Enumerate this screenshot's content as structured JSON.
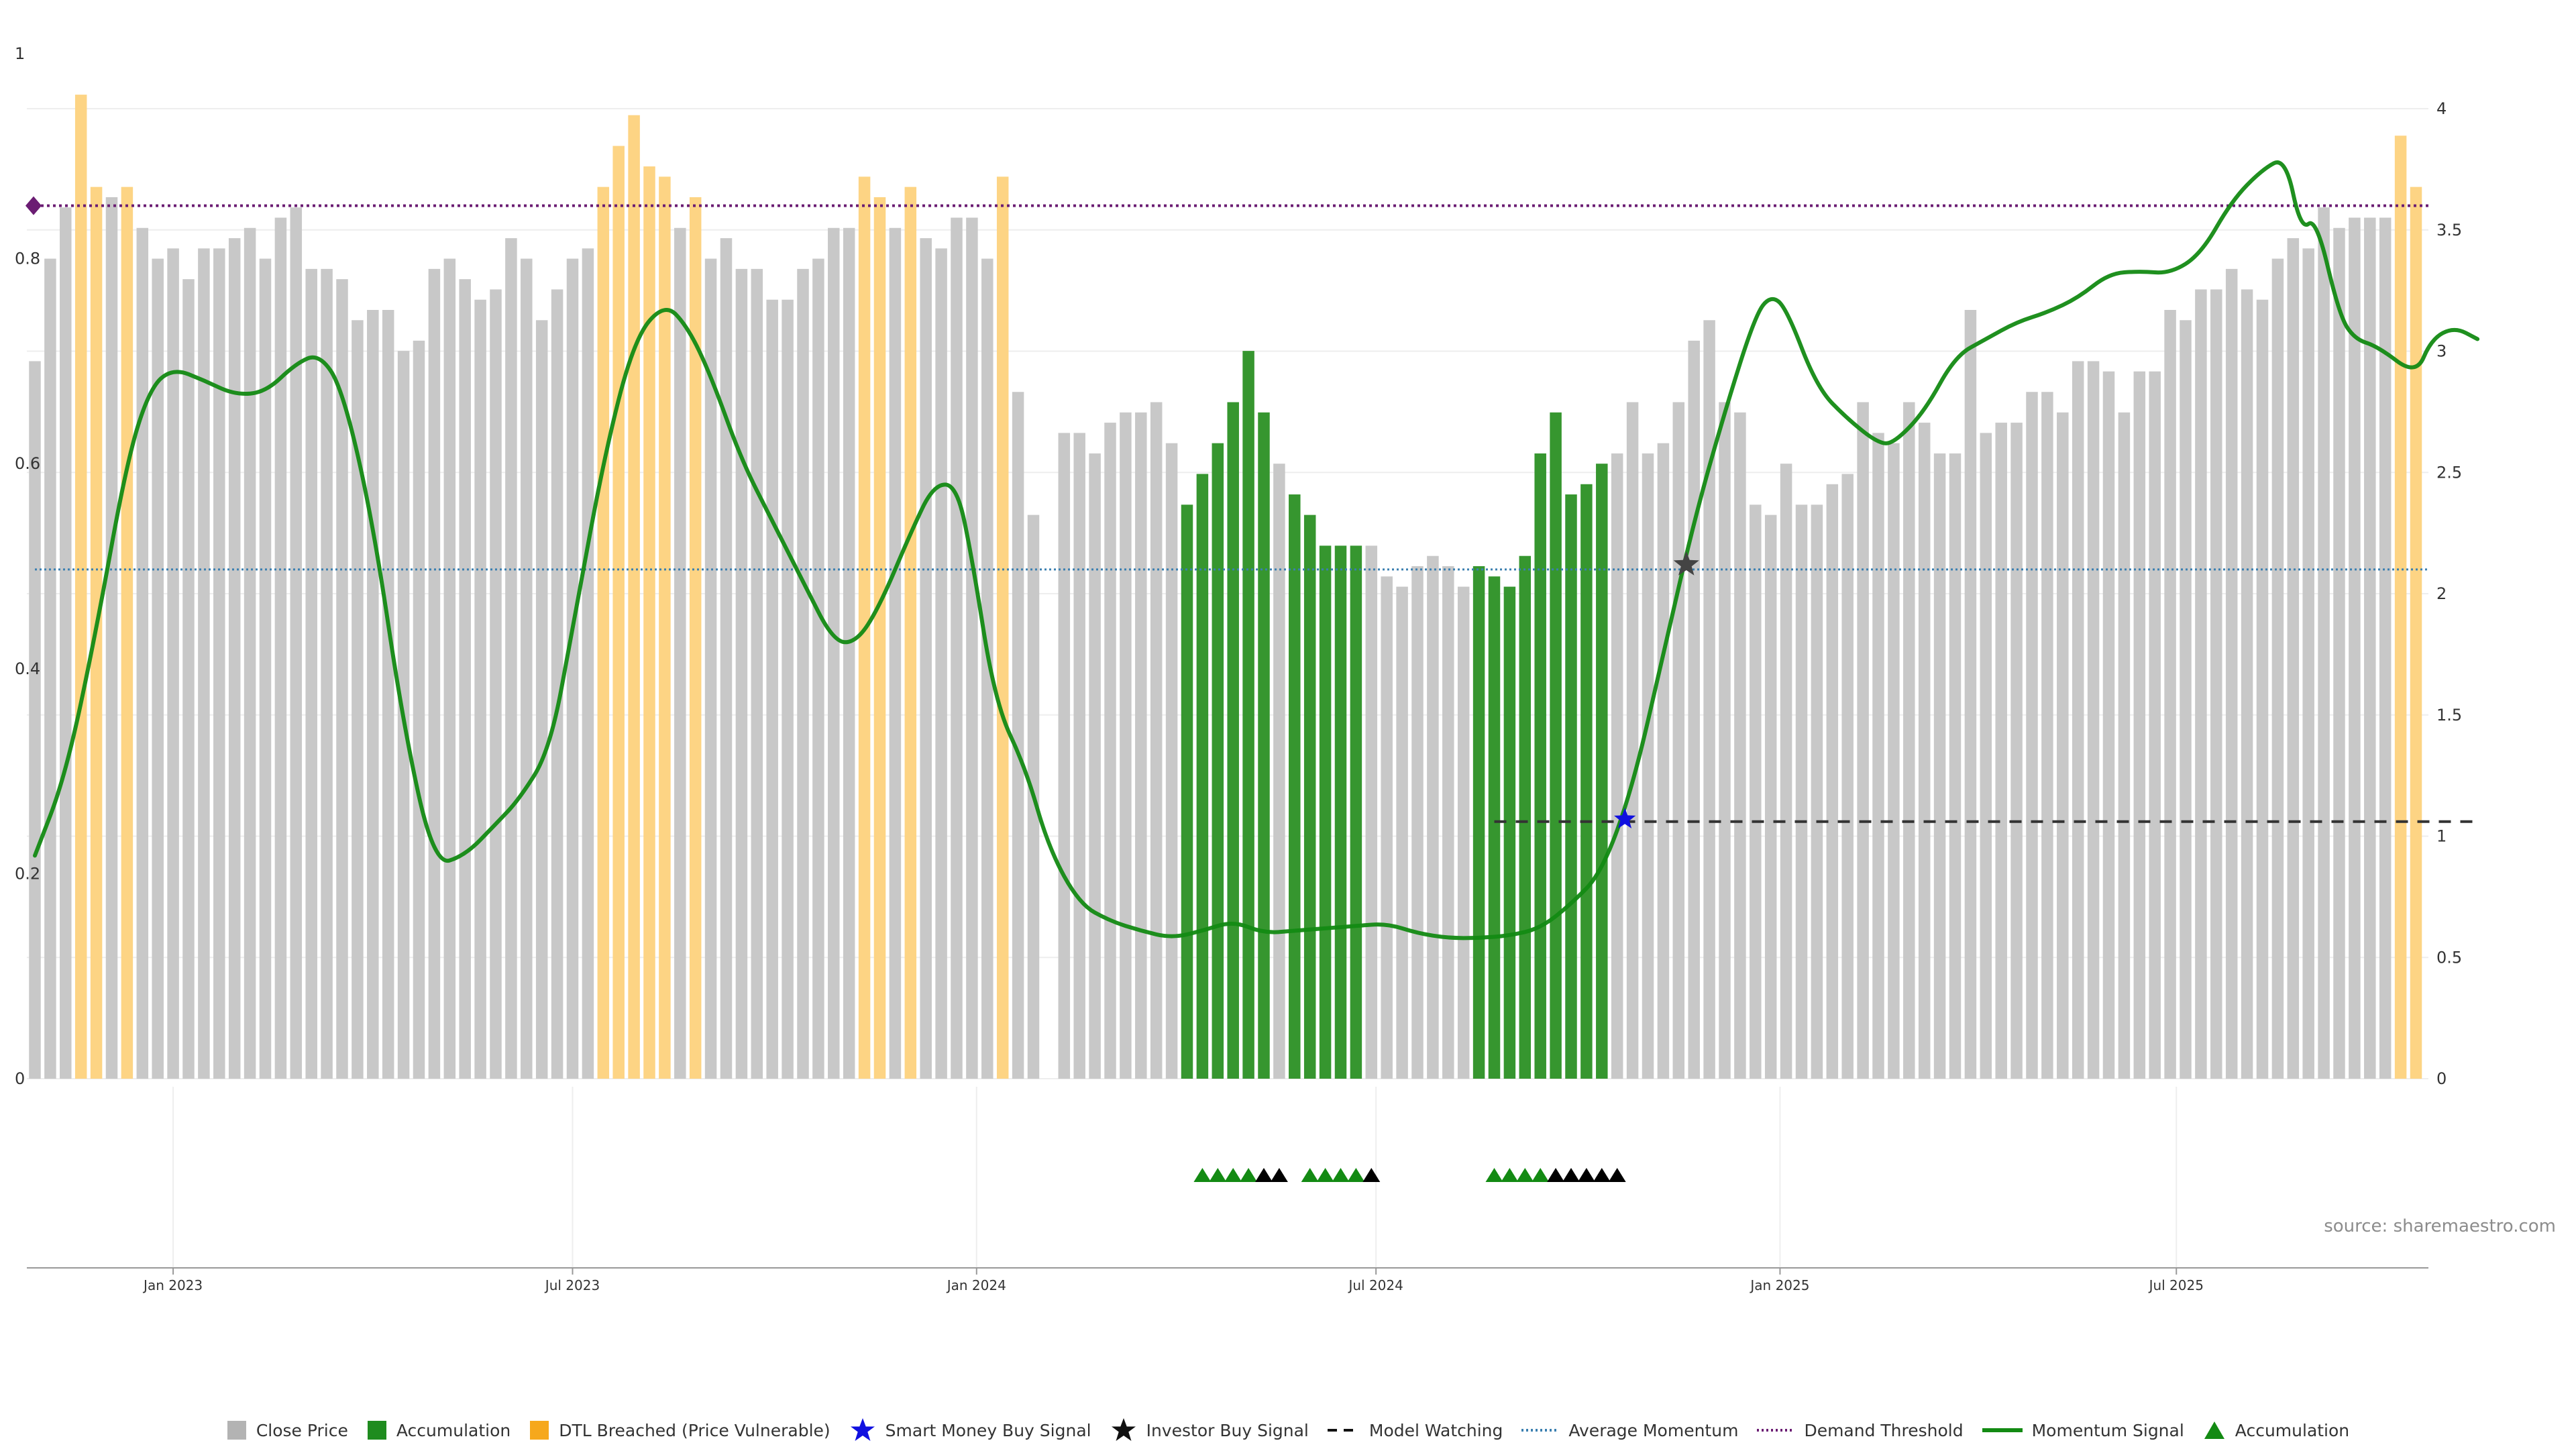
{
  "chart_data": {
    "type": "bar",
    "title": "",
    "source": "source: sharemaestro.com",
    "y_left": {
      "ticks": [
        "0",
        "0.2",
        "0.4",
        "0.6",
        "0.8",
        "1"
      ],
      "range": [
        0,
        1
      ]
    },
    "y_right": {
      "ticks": [
        "0",
        "0.5",
        "1",
        "1.5",
        "2",
        "2.5",
        "3",
        "3.5",
        "4"
      ],
      "range": [
        0,
        4
      ]
    },
    "x_ticks": [
      {
        "label": "Jan 2023",
        "week": 9
      },
      {
        "label": "Jul 2023",
        "week": 35
      },
      {
        "label": "Jan 2024",
        "week": 61.3
      },
      {
        "label": "Jul 2024",
        "week": 87.3
      },
      {
        "label": "Jan 2025",
        "week": 113.6
      },
      {
        "label": "Jul 2025",
        "week": 139.4
      }
    ],
    "bar_states": {
      "g": "Close Price",
      "a": "Accumulation",
      "o": "DTL Breached (Price Vulnerable)"
    },
    "close_price": [
      [
        0.7,
        "g"
      ],
      [
        0.8,
        "g"
      ],
      [
        0.85,
        "g"
      ],
      [
        0.96,
        "o"
      ],
      [
        0.87,
        "o"
      ],
      [
        0.86,
        "g"
      ],
      [
        0.87,
        "o"
      ],
      [
        0.83,
        "g"
      ],
      [
        0.8,
        "g"
      ],
      [
        0.81,
        "g"
      ],
      [
        0.78,
        "g"
      ],
      [
        0.81,
        "g"
      ],
      [
        0.81,
        "g"
      ],
      [
        0.82,
        "g"
      ],
      [
        0.83,
        "g"
      ],
      [
        0.8,
        "g"
      ],
      [
        0.84,
        "g"
      ],
      [
        0.85,
        "g"
      ],
      [
        0.79,
        "g"
      ],
      [
        0.79,
        "g"
      ],
      [
        0.78,
        "g"
      ],
      [
        0.74,
        "g"
      ],
      [
        0.75,
        "g"
      ],
      [
        0.75,
        "g"
      ],
      [
        0.71,
        "g"
      ],
      [
        0.72,
        "g"
      ],
      [
        0.79,
        "g"
      ],
      [
        0.8,
        "g"
      ],
      [
        0.78,
        "g"
      ],
      [
        0.76,
        "g"
      ],
      [
        0.77,
        "g"
      ],
      [
        0.82,
        "g"
      ],
      [
        0.8,
        "g"
      ],
      [
        0.74,
        "g"
      ],
      [
        0.77,
        "g"
      ],
      [
        0.8,
        "g"
      ],
      [
        0.81,
        "g"
      ],
      [
        0.87,
        "o"
      ],
      [
        0.91,
        "o"
      ],
      [
        0.94,
        "o"
      ],
      [
        0.89,
        "o"
      ],
      [
        0.88,
        "o"
      ],
      [
        0.83,
        "g"
      ],
      [
        0.86,
        "o"
      ],
      [
        0.8,
        "g"
      ],
      [
        0.82,
        "g"
      ],
      [
        0.79,
        "g"
      ],
      [
        0.79,
        "g"
      ],
      [
        0.76,
        "g"
      ],
      [
        0.76,
        "g"
      ],
      [
        0.79,
        "g"
      ],
      [
        0.8,
        "g"
      ],
      [
        0.83,
        "g"
      ],
      [
        0.83,
        "g"
      ],
      [
        0.88,
        "o"
      ],
      [
        0.86,
        "o"
      ],
      [
        0.83,
        "g"
      ],
      [
        0.87,
        "o"
      ],
      [
        0.82,
        "g"
      ],
      [
        0.81,
        "g"
      ],
      [
        0.84,
        "g"
      ],
      [
        0.84,
        "g"
      ],
      [
        0.8,
        "g"
      ],
      [
        0.88,
        "o"
      ],
      [
        0.67,
        "g"
      ],
      [
        0.55,
        "g"
      ],
      [
        0.0,
        "g"
      ],
      [
        0.63,
        "g"
      ],
      [
        0.63,
        "g"
      ],
      [
        0.61,
        "g"
      ],
      [
        0.64,
        "g"
      ],
      [
        0.65,
        "g"
      ],
      [
        0.65,
        "g"
      ],
      [
        0.66,
        "g"
      ],
      [
        0.62,
        "g"
      ],
      [
        0.56,
        "a"
      ],
      [
        0.59,
        "a"
      ],
      [
        0.62,
        "a"
      ],
      [
        0.66,
        "a"
      ],
      [
        0.71,
        "a"
      ],
      [
        0.65,
        "a"
      ],
      [
        0.6,
        "g"
      ],
      [
        0.57,
        "a"
      ],
      [
        0.55,
        "a"
      ],
      [
        0.52,
        "a"
      ],
      [
        0.52,
        "a"
      ],
      [
        0.52,
        "a"
      ],
      [
        0.52,
        "g"
      ],
      [
        0.49,
        "g"
      ],
      [
        0.48,
        "g"
      ],
      [
        0.5,
        "g"
      ],
      [
        0.51,
        "g"
      ],
      [
        0.5,
        "g"
      ],
      [
        0.48,
        "g"
      ],
      [
        0.5,
        "a"
      ],
      [
        0.49,
        "a"
      ],
      [
        0.48,
        "a"
      ],
      [
        0.51,
        "a"
      ],
      [
        0.61,
        "a"
      ],
      [
        0.65,
        "a"
      ],
      [
        0.57,
        "a"
      ],
      [
        0.58,
        "a"
      ],
      [
        0.6,
        "a"
      ],
      [
        0.61,
        "g"
      ],
      [
        0.66,
        "g"
      ],
      [
        0.61,
        "g"
      ],
      [
        0.62,
        "g"
      ],
      [
        0.66,
        "g"
      ],
      [
        0.72,
        "g"
      ],
      [
        0.74,
        "g"
      ],
      [
        0.66,
        "g"
      ],
      [
        0.65,
        "g"
      ],
      [
        0.56,
        "g"
      ],
      [
        0.55,
        "g"
      ],
      [
        0.6,
        "g"
      ],
      [
        0.56,
        "g"
      ],
      [
        0.56,
        "g"
      ],
      [
        0.58,
        "g"
      ],
      [
        0.59,
        "g"
      ],
      [
        0.66,
        "g"
      ],
      [
        0.63,
        "g"
      ],
      [
        0.62,
        "g"
      ],
      [
        0.66,
        "g"
      ],
      [
        0.64,
        "g"
      ],
      [
        0.61,
        "g"
      ],
      [
        0.61,
        "g"
      ],
      [
        0.75,
        "g"
      ],
      [
        0.63,
        "g"
      ],
      [
        0.64,
        "g"
      ],
      [
        0.64,
        "g"
      ],
      [
        0.67,
        "g"
      ],
      [
        0.67,
        "g"
      ],
      [
        0.65,
        "g"
      ],
      [
        0.7,
        "g"
      ],
      [
        0.7,
        "g"
      ],
      [
        0.69,
        "g"
      ],
      [
        0.65,
        "g"
      ],
      [
        0.69,
        "g"
      ],
      [
        0.69,
        "g"
      ],
      [
        0.75,
        "g"
      ],
      [
        0.74,
        "g"
      ],
      [
        0.77,
        "g"
      ],
      [
        0.77,
        "g"
      ],
      [
        0.79,
        "g"
      ],
      [
        0.77,
        "g"
      ],
      [
        0.76,
        "g"
      ],
      [
        0.8,
        "g"
      ],
      [
        0.82,
        "g"
      ],
      [
        0.81,
        "g"
      ],
      [
        0.85,
        "g"
      ],
      [
        0.83,
        "g"
      ],
      [
        0.84,
        "g"
      ],
      [
        0.84,
        "g"
      ],
      [
        0.84,
        "g"
      ],
      [
        0.92,
        "o"
      ],
      [
        0.87,
        "o"
      ]
    ],
    "momentum_signal": [
      [
        0,
        0.92
      ],
      [
        2,
        1.25
      ],
      [
        4,
        1.85
      ],
      [
        6,
        2.55
      ],
      [
        7.5,
        2.85
      ],
      [
        9,
        2.93
      ],
      [
        11,
        2.88
      ],
      [
        13,
        2.82
      ],
      [
        15,
        2.83
      ],
      [
        17,
        2.95
      ],
      [
        18.5,
        2.99
      ],
      [
        20,
        2.85
      ],
      [
        22,
        2.3
      ],
      [
        24,
        1.45
      ],
      [
        26,
        0.88
      ],
      [
        28,
        0.92
      ],
      [
        30,
        1.05
      ],
      [
        31.5,
        1.15
      ],
      [
        33.5,
        1.35
      ],
      [
        35,
        1.85
      ],
      [
        37,
        2.55
      ],
      [
        39,
        3.05
      ],
      [
        41,
        3.2
      ],
      [
        42.5,
        3.1
      ],
      [
        44,
        2.9
      ],
      [
        46,
        2.55
      ],
      [
        48,
        2.3
      ],
      [
        50,
        2.05
      ],
      [
        52,
        1.8
      ],
      [
        53.5,
        1.8
      ],
      [
        55,
        1.95
      ],
      [
        57,
        2.25
      ],
      [
        58.5,
        2.45
      ],
      [
        60,
        2.45
      ],
      [
        61,
        2.15
      ],
      [
        62.5,
        1.55
      ],
      [
        64.5,
        1.28
      ],
      [
        66,
        0.95
      ],
      [
        68,
        0.72
      ],
      [
        70,
        0.65
      ],
      [
        72,
        0.61
      ],
      [
        74,
        0.58
      ],
      [
        76,
        0.61
      ],
      [
        78,
        0.65
      ],
      [
        80,
        0.6
      ],
      [
        82,
        0.61
      ],
      [
        84,
        0.62
      ],
      [
        86,
        0.63
      ],
      [
        88,
        0.64
      ],
      [
        90,
        0.6
      ],
      [
        92,
        0.58
      ],
      [
        94,
        0.58
      ],
      [
        96,
        0.59
      ],
      [
        98,
        0.62
      ],
      [
        100,
        0.72
      ],
      [
        102,
        0.85
      ],
      [
        104,
        1.2
      ],
      [
        106,
        1.75
      ],
      [
        108,
        2.3
      ],
      [
        110,
        2.75
      ],
      [
        112,
        3.15
      ],
      [
        113,
        3.23
      ],
      [
        114,
        3.18
      ],
      [
        116,
        2.85
      ],
      [
        118,
        2.72
      ],
      [
        120,
        2.62
      ],
      [
        121,
        2.62
      ],
      [
        123,
        2.75
      ],
      [
        125,
        2.98
      ],
      [
        127,
        3.05
      ],
      [
        129,
        3.12
      ],
      [
        131,
        3.16
      ],
      [
        133,
        3.22
      ],
      [
        135,
        3.32
      ],
      [
        137,
        3.33
      ],
      [
        139,
        3.32
      ],
      [
        141,
        3.4
      ],
      [
        143,
        3.62
      ],
      [
        145,
        3.75
      ],
      [
        146.5,
        3.8
      ],
      [
        147.5,
        3.5
      ],
      [
        148.5,
        3.55
      ],
      [
        150,
        3.15
      ],
      [
        151,
        3.05
      ],
      [
        152.5,
        3.02
      ],
      [
        155,
        2.9
      ],
      [
        156,
        3.05
      ],
      [
        157.5,
        3.1
      ],
      [
        159,
        3.05
      ]
    ],
    "average_momentum": 2.1,
    "demand_threshold": 3.6,
    "model_watching": {
      "value": 1.06,
      "from_week": 95,
      "to_week": 159
    },
    "smart_money_buy_signal": {
      "week": 103.5,
      "value": 1.07
    },
    "investor_buy_signal": {
      "week": 107.5,
      "value": 2.12
    },
    "demand_marker": {
      "week": 0,
      "value": 3.6
    },
    "signal_triangles": [
      {
        "week": 76,
        "color": "#138a13"
      },
      {
        "week": 77,
        "color": "#138a13"
      },
      {
        "week": 78,
        "color": "#138a13"
      },
      {
        "week": 79,
        "color": "#138a13"
      },
      {
        "week": 80,
        "color": "#000000"
      },
      {
        "week": 81,
        "color": "#000000"
      },
      {
        "week": 83,
        "color": "#138a13"
      },
      {
        "week": 84,
        "color": "#138a13"
      },
      {
        "week": 85,
        "color": "#138a13"
      },
      {
        "week": 86,
        "color": "#138a13"
      },
      {
        "week": 87,
        "color": "#000000"
      },
      {
        "week": 95,
        "color": "#138a13"
      },
      {
        "week": 96,
        "color": "#138a13"
      },
      {
        "week": 97,
        "color": "#138a13"
      },
      {
        "week": 98,
        "color": "#138a13"
      },
      {
        "week": 99,
        "color": "#000000"
      },
      {
        "week": 100,
        "color": "#000000"
      },
      {
        "week": 101,
        "color": "#000000"
      },
      {
        "week": 102,
        "color": "#000000"
      },
      {
        "week": 103,
        "color": "#000000"
      }
    ],
    "colors": {
      "close_price": "#c8c8c8",
      "accumulation": "#36962f",
      "dtl_breached": "#fdd484",
      "momentum": "#138a13",
      "average_momentum": "#3a7fb0",
      "demand_threshold": "#6b1d73",
      "model_watching": "#333333",
      "smart_money": "#1010e0",
      "investor": "#111111"
    },
    "grid": true,
    "legend_position": "bottom"
  },
  "legend": [
    {
      "label": "Close Price",
      "symbol": "square",
      "color": "#b3b3b3"
    },
    {
      "label": "Accumulation",
      "symbol": "square",
      "color": "#1f8c1f"
    },
    {
      "label": "DTL Breached (Price Vulnerable)",
      "symbol": "square",
      "color": "#f6a81c"
    },
    {
      "label": "Smart Money Buy Signal",
      "symbol": "star",
      "color": "#1010e0"
    },
    {
      "label": "Investor Buy Signal",
      "symbol": "star",
      "color": "#111111"
    },
    {
      "label": "Model Watching",
      "symbol": "dash",
      "color": "#111111"
    },
    {
      "label": "Average Momentum",
      "symbol": "dot",
      "color": "#3a7fb0"
    },
    {
      "label": "Demand Threshold",
      "symbol": "dot",
      "color": "#6b1d73"
    },
    {
      "label": "Momentum Signal",
      "symbol": "line",
      "color": "#138a13"
    },
    {
      "label": "Accumulation",
      "symbol": "triangle",
      "color": "#138a13"
    }
  ]
}
